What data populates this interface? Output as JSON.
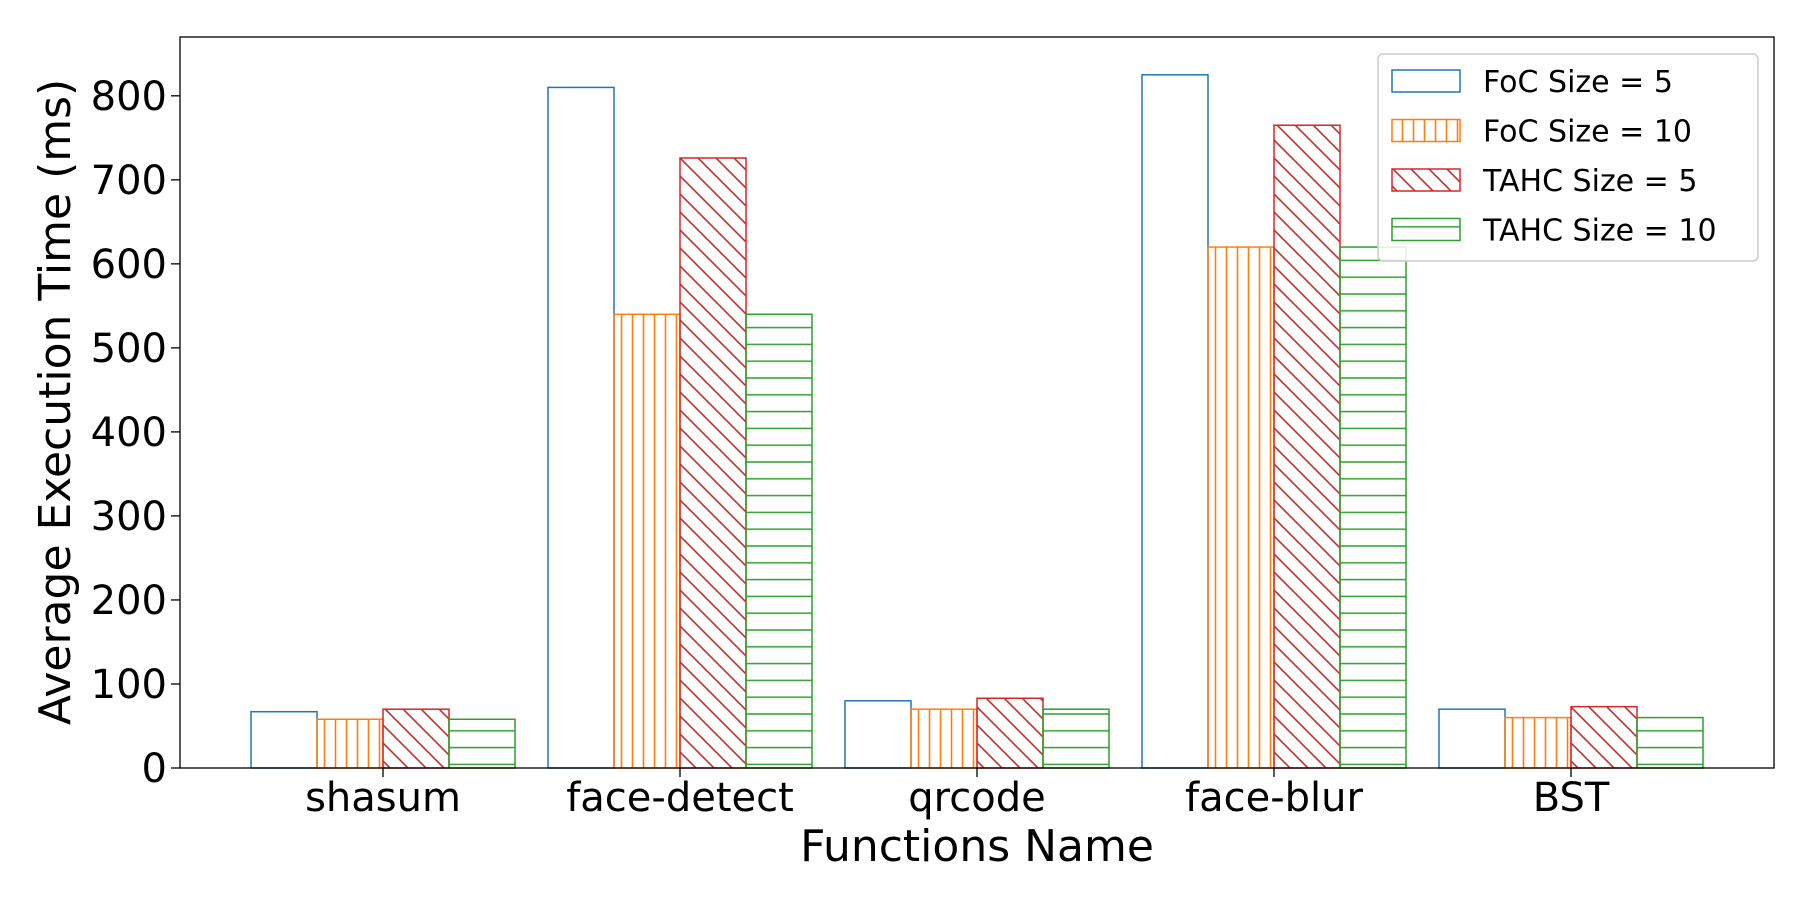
{
  "chart_data": {
    "type": "bar",
    "title": "",
    "xlabel": "Functions Name",
    "ylabel": "Average Execution Time (ms)",
    "ylim": [
      0,
      870
    ],
    "yticks": [
      0,
      100,
      200,
      300,
      400,
      500,
      600,
      700,
      800
    ],
    "categories": [
      "shasum",
      "face-detect",
      "qrcode",
      "face-blur",
      "BST"
    ],
    "grid": false,
    "legend_position": "top-right",
    "series": [
      {
        "name": "FoC Size = 5",
        "color": "#1f77b4",
        "hatch": "none",
        "values": [
          67,
          810,
          80,
          825,
          70
        ]
      },
      {
        "name": "FoC Size = 10",
        "color": "#ff7f0e",
        "hatch": "vertical",
        "values": [
          58,
          540,
          70,
          620,
          60
        ]
      },
      {
        "name": "TAHC Size = 5",
        "color": "#d62728",
        "hatch": "diagonal",
        "values": [
          70,
          726,
          83,
          765,
          73
        ]
      },
      {
        "name": "TAHC Size = 10",
        "color": "#2ca02c",
        "hatch": "horizontal",
        "values": [
          58,
          540,
          70,
          620,
          60
        ]
      }
    ]
  }
}
